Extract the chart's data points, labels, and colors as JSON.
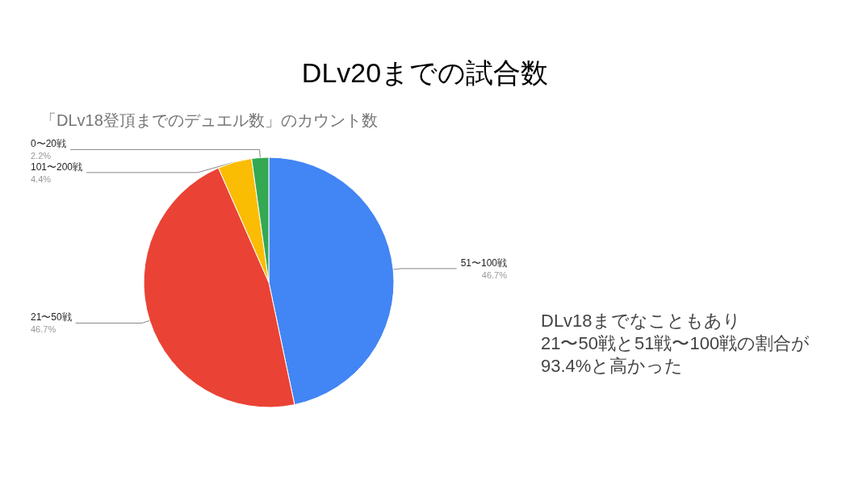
{
  "chart_data": {
    "type": "pie",
    "title": "DLv20までの試合数",
    "subtitle": "「DLv18登頂までのデュエル数」のカウント数",
    "categories": [
      "51〜100戦",
      "21〜50戦",
      "101〜200戦",
      "0〜20戦"
    ],
    "values": [
      46.7,
      46.7,
      4.4,
      2.2
    ],
    "colors": [
      "#4285f4",
      "#ea4335",
      "#fbbc04",
      "#34a853"
    ],
    "value_labels": [
      "46.7%",
      "46.7%",
      "4.4%",
      "2.2%"
    ],
    "annotations": [
      "DLv18までなこともあり\n21〜50戦と51戦〜100戦の割合が\n93.4%と高かった"
    ],
    "legend": false
  }
}
